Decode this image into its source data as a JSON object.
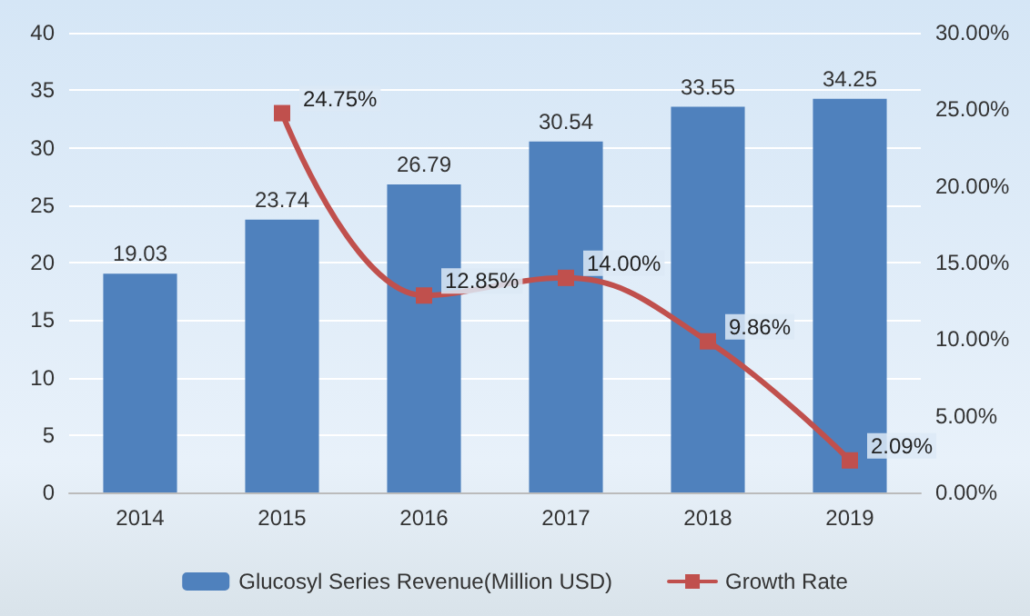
{
  "chart_data": {
    "type": "bar",
    "categories": [
      "2014",
      "2015",
      "2016",
      "2017",
      "2018",
      "2019"
    ],
    "series": [
      {
        "name": "Glucosyl Series Revenue(Million USD)",
        "color": "#4f81bd",
        "values": [
          19.03,
          23.74,
          26.79,
          30.54,
          33.55,
          34.25
        ]
      },
      {
        "name": "Growth Rate",
        "type": "line",
        "axis": "y2",
        "color": "#c0504d",
        "marker": "square",
        "values": [
          null,
          24.75,
          12.85,
          14.0,
          9.86,
          2.09
        ],
        "value_labels": [
          null,
          "24.75%",
          "12.85%",
          "14.00%",
          "9.86%",
          "2.09%"
        ]
      }
    ],
    "ylim": [
      0,
      40
    ],
    "yticks": [
      0,
      5,
      10,
      15,
      20,
      25,
      30,
      35,
      40
    ],
    "y2lim": [
      0,
      30
    ],
    "y2ticks": [
      {
        "value": 0,
        "label": "0.00%"
      },
      {
        "value": 5,
        "label": "5.00%"
      },
      {
        "value": 10,
        "label": "10.00%"
      },
      {
        "value": 15,
        "label": "15.00%"
      },
      {
        "value": 20,
        "label": "20.00%"
      },
      {
        "value": 25,
        "label": "25.00%"
      },
      {
        "value": 30,
        "label": "30.00%"
      }
    ],
    "data_labels": true,
    "grid": "y",
    "legend": "bottom"
  }
}
